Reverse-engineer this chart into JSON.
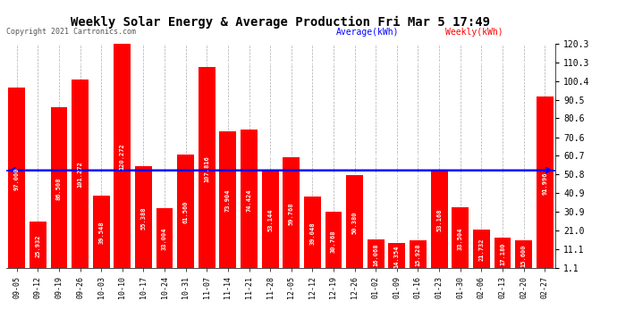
{
  "title": "Weekly Solar Energy & Average Production Fri Mar 5 17:49",
  "copyright": "Copyright 2021 Cartronics.com",
  "categories": [
    "09-05",
    "09-12",
    "09-19",
    "09-26",
    "10-03",
    "10-10",
    "10-17",
    "10-24",
    "10-31",
    "11-07",
    "11-14",
    "11-21",
    "11-28",
    "12-05",
    "12-12",
    "12-19",
    "12-26",
    "01-02",
    "01-09",
    "01-16",
    "01-23",
    "01-30",
    "02-06",
    "02-13",
    "02-20",
    "02-27"
  ],
  "weekly_values": [
    97.0,
    25.932,
    86.508,
    101.272,
    39.548,
    120.272,
    55.388,
    33.004,
    61.56,
    107.816,
    73.904,
    74.424,
    53.144,
    59.768,
    39.048,
    30.768,
    50.38,
    16.068,
    14.354,
    15.928,
    53.168,
    33.504,
    21.732,
    17.18,
    15.6,
    91.996
  ],
  "average_value": 53.031,
  "bar_color": "#ff0000",
  "average_line_color": "#0000ff",
  "ylim_min": 1.1,
  "ylim_max": 120.3,
  "yticks": [
    1.1,
    11.1,
    21.0,
    30.9,
    40.9,
    50.8,
    60.7,
    70.6,
    80.6,
    90.5,
    100.4,
    110.3,
    120.3
  ],
  "legend_average_color": "#0000ff",
  "legend_weekly_color": "#ff0000",
  "background_color": "#ffffff",
  "grid_color": "#aaaaaa"
}
